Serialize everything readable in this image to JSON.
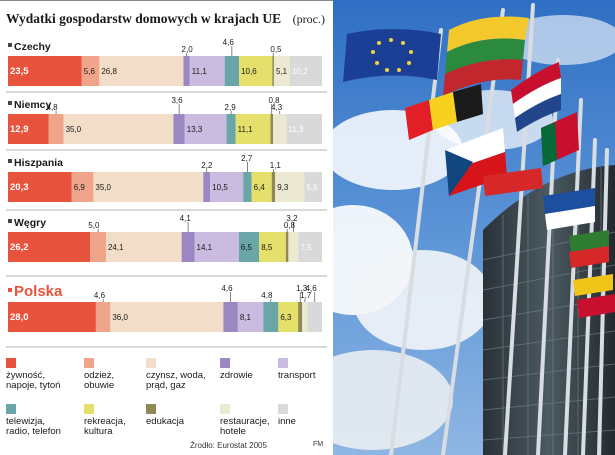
{
  "title": "Wydatki gospodarstw domowych w krajach UE",
  "unit": "(proc.)",
  "source": "Źrodło: Eurostat 2005",
  "source_tag": "FM",
  "colors": {
    "zywnosc": "#e8533d",
    "odziez": "#f0a58a",
    "czynsz": "#f2ddc8",
    "zdrowie": "#9b87c2",
    "transport": "#c9bce0",
    "telewizja": "#6aa5a8",
    "rekreacja": "#e5df6c",
    "edukacja": "#8f8a55",
    "restauracje": "#ece9d2",
    "inne": "#d9d9d9"
  },
  "legend": [
    {
      "key": "zywnosc",
      "label": "żywność,\nnapoje, tytoń"
    },
    {
      "key": "odziez",
      "label": "odzież,\nobuwie"
    },
    {
      "key": "czynsz",
      "label": "czynsz, woda,\nprąd, gaz"
    },
    {
      "key": "zdrowie",
      "label": "zdrowie"
    },
    {
      "key": "transport",
      "label": "transport"
    },
    {
      "key": "telewizja",
      "label": "telewizja,\nradio, telefon"
    },
    {
      "key": "rekreacja",
      "label": "rekreacja,\nkultura"
    },
    {
      "key": "edukacja",
      "label": "edukacja"
    },
    {
      "key": "restauracje",
      "label": "restauracje,\nhotele"
    },
    {
      "key": "inne",
      "label": "inne"
    }
  ],
  "chart_data": {
    "type": "bar",
    "stacked": true,
    "orientation": "horizontal",
    "categories": [
      "Czechy",
      "Niemcy",
      "Hiszpania",
      "Węgry",
      "Polska"
    ],
    "highlight": "Polska",
    "series": [
      {
        "name": "żywność, napoje, tytoń",
        "key": "zywnosc",
        "values": [
          23.5,
          12.9,
          20.3,
          26.2,
          28.0
        ]
      },
      {
        "name": "odzież, obuwie",
        "key": "odziez",
        "values": [
          5.6,
          4.8,
          6.9,
          5.0,
          4.6
        ]
      },
      {
        "name": "czynsz, woda, prąd, gaz",
        "key": "czynsz",
        "values": [
          26.8,
          35.0,
          35.0,
          24.1,
          36.0
        ]
      },
      {
        "name": "zdrowie",
        "key": "zdrowie",
        "values": [
          2.0,
          3.6,
          2.2,
          4.1,
          4.6
        ]
      },
      {
        "name": "transport",
        "key": "transport",
        "values": [
          11.1,
          13.3,
          10.5,
          14.1,
          8.1
        ]
      },
      {
        "name": "telewizja, radio, telefon",
        "key": "telewizja",
        "values": [
          4.6,
          2.9,
          2.7,
          6.5,
          4.8
        ]
      },
      {
        "name": "rekreacja, kultura",
        "key": "rekreacja",
        "values": [
          10.6,
          11.1,
          6.4,
          8.5,
          6.3
        ]
      },
      {
        "name": "edukacja",
        "key": "edukacja",
        "values": [
          0.5,
          0.8,
          1.1,
          0.8,
          1.3
        ]
      },
      {
        "name": "restauracje, hotele",
        "key": "restauracje",
        "values": [
          5.1,
          4.3,
          9.3,
          3.2,
          1.7
        ]
      },
      {
        "name": "inne",
        "key": "inne",
        "values": [
          10.2,
          11.3,
          5.6,
          7.5,
          4.6
        ]
      }
    ],
    "xlim": [
      0,
      100
    ],
    "grid": false,
    "legend_position": "bottom"
  }
}
